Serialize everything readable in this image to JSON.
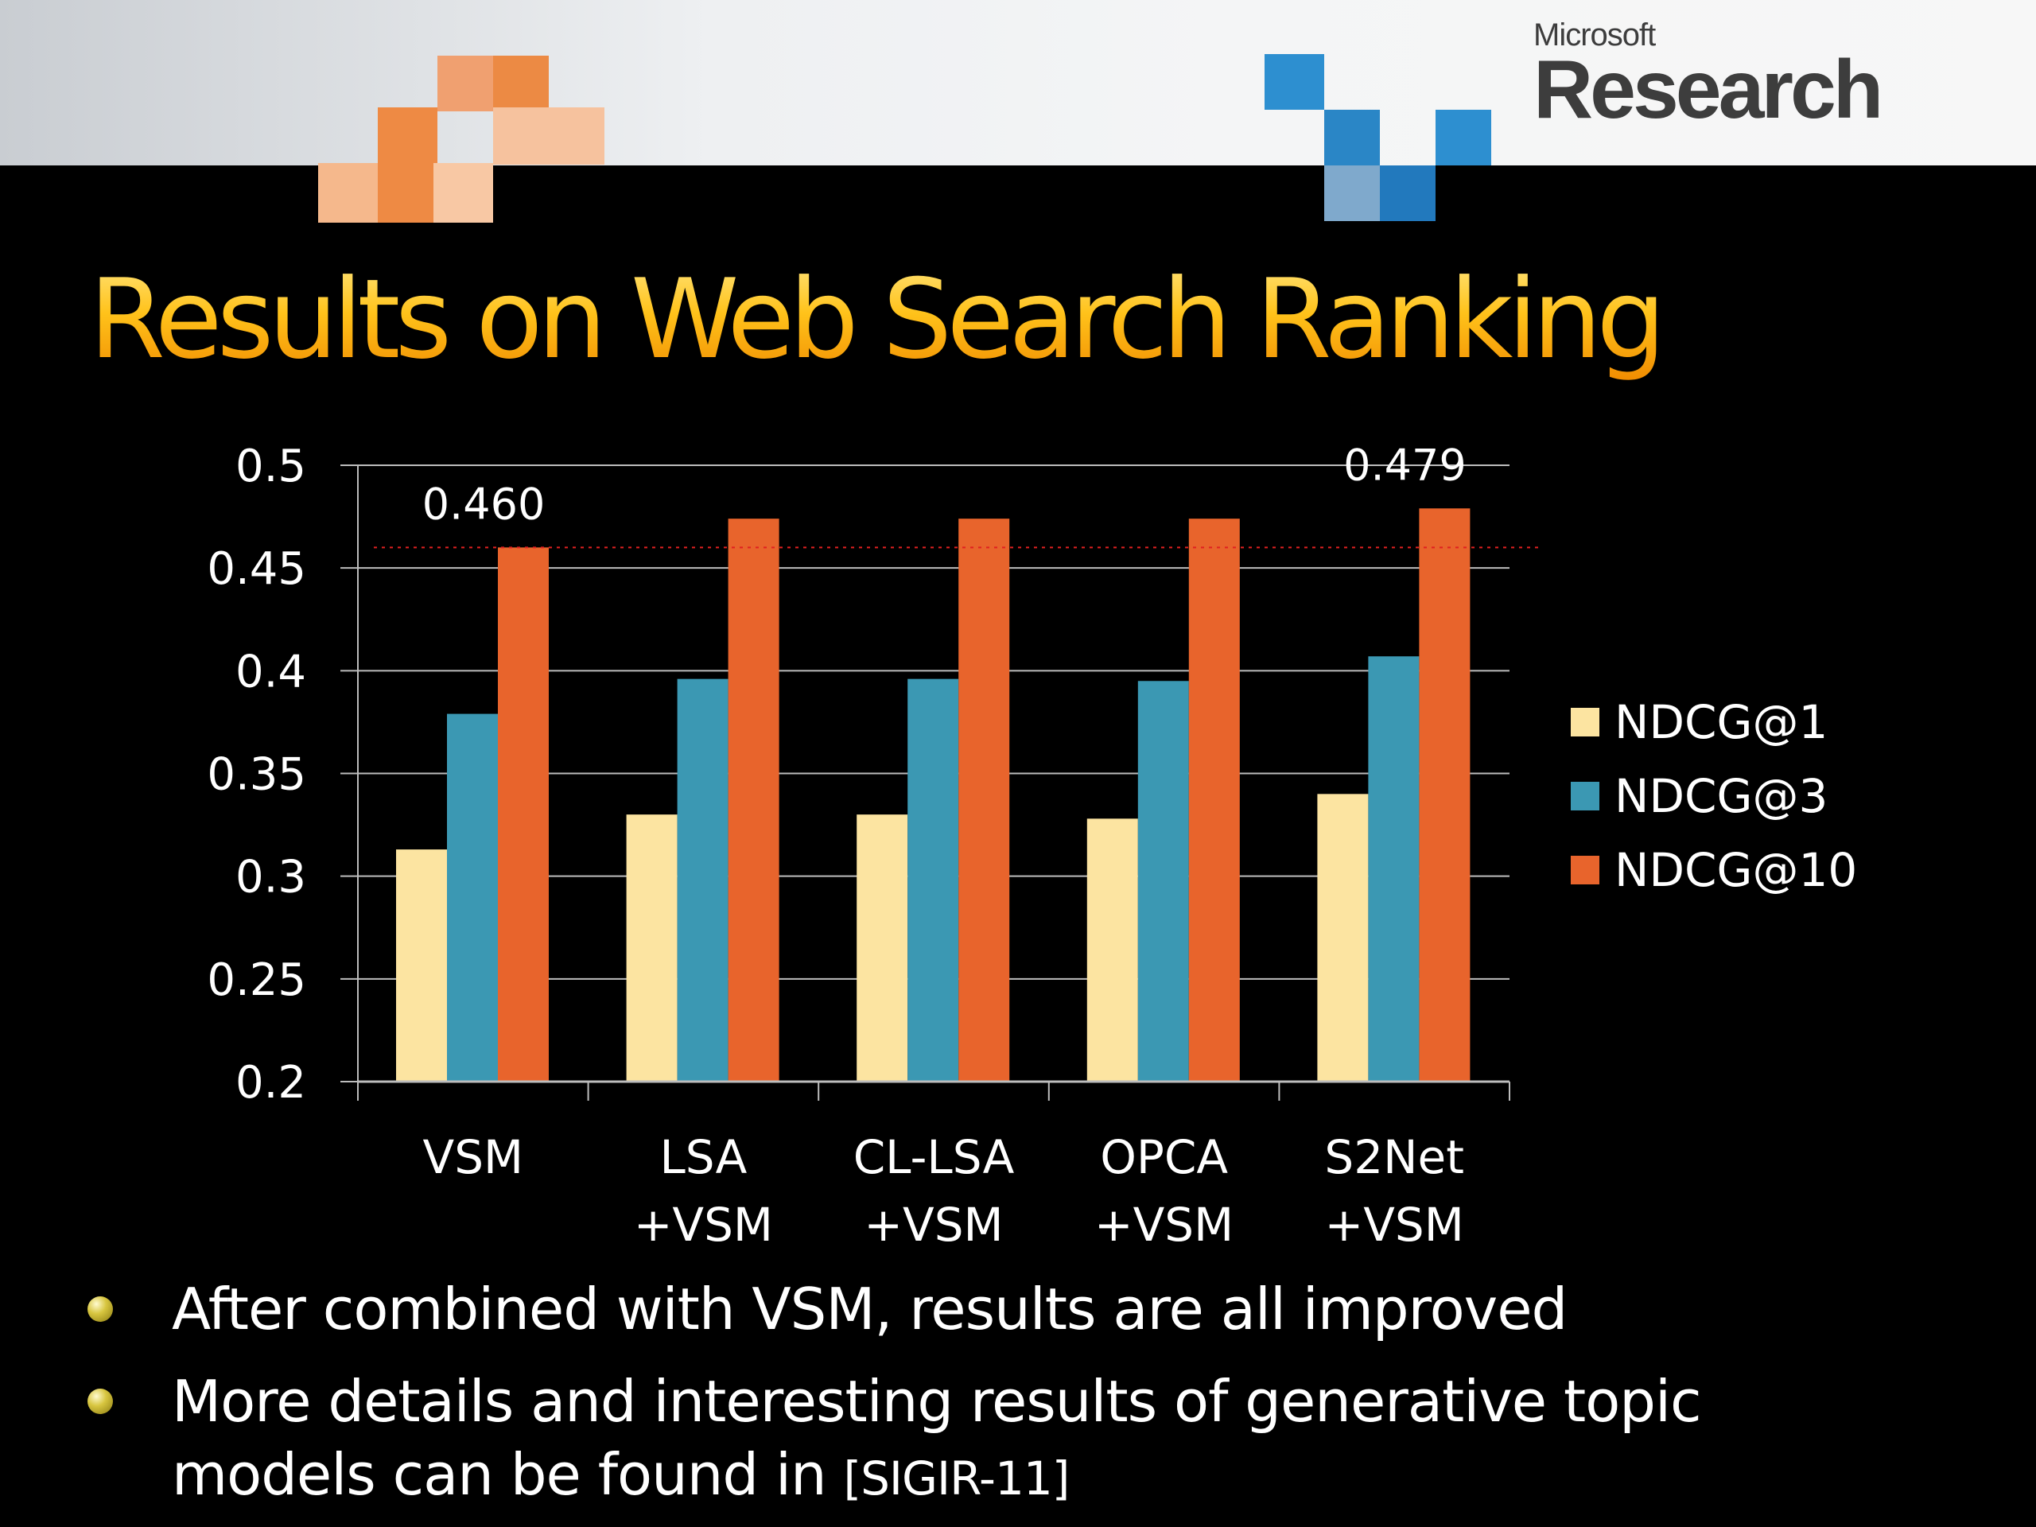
{
  "header": {
    "logo_small": "Microsoft",
    "logo_big": "Research"
  },
  "title": "Results on Web Search Ranking",
  "chart_data": {
    "type": "bar",
    "categories": [
      [
        "VSM"
      ],
      [
        "LSA",
        "+VSM"
      ],
      [
        "CL-LSA",
        "+VSM"
      ],
      [
        "OPCA",
        "+VSM"
      ],
      [
        "S2Net",
        "+VSM"
      ]
    ],
    "series": [
      {
        "name": "NDCG@1",
        "color": "#fce4a1",
        "values": [
          0.313,
          0.33,
          0.33,
          0.328,
          0.34
        ]
      },
      {
        "name": "NDCG@3",
        "color": "#3b98b3",
        "values": [
          0.379,
          0.396,
          0.396,
          0.395,
          0.407
        ]
      },
      {
        "name": "NDCG@10",
        "color": "#e8642c",
        "values": [
          0.46,
          0.474,
          0.474,
          0.474,
          0.479
        ]
      }
    ],
    "ylim": [
      0.2,
      0.5
    ],
    "yticks": [
      "0.2",
      "0.25",
      "0.3",
      "0.35",
      "0.4",
      "0.45",
      "0.5"
    ],
    "grid": true,
    "legend_position": "right",
    "reference_line": {
      "value": 0.46,
      "color": "#e02020"
    },
    "annotations": [
      {
        "text": "0.460",
        "category_index": 0,
        "series_index": 2
      },
      {
        "text": "0.479",
        "category_index": 4,
        "series_index": 2
      }
    ]
  },
  "bullets": [
    {
      "text": "After combined with VSM, results are all improved",
      "ref": ""
    },
    {
      "text": "More details and interesting results of generative topic models can be found in ",
      "ref": "[SIGIR-11]"
    }
  ]
}
